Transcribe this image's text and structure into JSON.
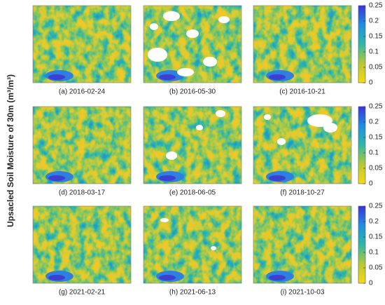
{
  "y_axis_label": "Upsacled Soil Moisture of 30m (m³/m³)",
  "panels": [
    {
      "caption": "(a) 2016-02-24"
    },
    {
      "caption": "(b) 2016-05-30"
    },
    {
      "caption": "(c) 2016-10-21"
    },
    {
      "caption": "(d) 2018-03-17"
    },
    {
      "caption": "(e) 2018-06-05"
    },
    {
      "caption": "(f) 2018-10-27"
    },
    {
      "caption": "(g) 2021-02-21"
    },
    {
      "caption": "(h) 2021-06-13"
    },
    {
      "caption": "(i) 2021-10-03"
    }
  ],
  "colorbar": {
    "lim": [
      0,
      0.25
    ],
    "ticks": [
      0,
      0.05,
      0.1,
      0.15,
      0.2,
      0.25
    ]
  }
}
